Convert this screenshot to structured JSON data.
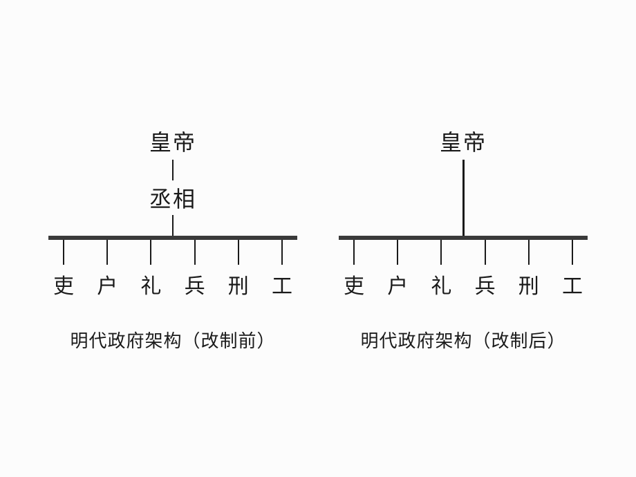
{
  "charts": [
    {
      "top": "皇帝",
      "middle": "丞相",
      "caption": "明代政府架构（改制前）",
      "leaves": [
        "吏",
        "户",
        "礼",
        "兵",
        "刑",
        "工"
      ],
      "layout": {
        "vline1_height": 30,
        "vline2_height": 30,
        "long_vline_height": 0,
        "hbar_width": 360,
        "branch_row_width": 360,
        "tick_height": 36,
        "vline_width": 2
      }
    },
    {
      "top": "皇帝",
      "middle": "",
      "caption": "明代政府架构（改制后）",
      "leaves": [
        "吏",
        "户",
        "礼",
        "兵",
        "刑",
        "工"
      ],
      "layout": {
        "vline1_height": 0,
        "vline2_height": 0,
        "long_vline_height": 110,
        "hbar_width": 360,
        "branch_row_width": 360,
        "tick_height": 36,
        "vline_width": 3
      }
    }
  ],
  "colors": {
    "background": "#fcfcfc",
    "text": "#1a1a1a",
    "hbar": "#3a3a3a",
    "line": "#1a1a1a"
  },
  "typography": {
    "top_fontsize": 32,
    "mid_fontsize": 32,
    "leaf_fontsize": 30,
    "caption_fontsize": 26,
    "font_family": "SimSun"
  }
}
